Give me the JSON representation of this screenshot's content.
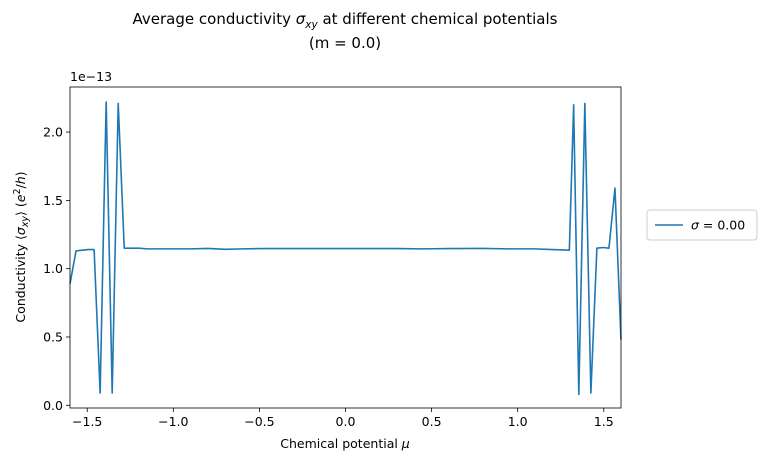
{
  "chart_data": {
    "type": "line",
    "title_line1_prefix": "Average conductivity ",
    "title_line1_symbol": "σ",
    "title_line1_symbol_sub": "xy",
    "title_line1_suffix": " at different chemical potentials",
    "title_line2": "(m = 0.0)",
    "xlabel_text": "Chemical potential ",
    "xlabel_symbol": "μ",
    "ylabel_prefix": "Conductivity ⟨",
    "ylabel_symbol": "σ",
    "ylabel_sub": "xy",
    "ylabel_mid": "⟩ (",
    "ylabel_e": "e",
    "ylabel_exp": "2",
    "ylabel_rest": "/",
    "ylabel_h": "h",
    "ylabel_close": ")",
    "y_offset_label": "1e−13",
    "xlim": [
      -1.6,
      1.6
    ],
    "ylim": [
      -0.02,
      2.33
    ],
    "x_ticks": [
      -1.5,
      -1.0,
      -0.5,
      0.0,
      0.5,
      1.0,
      1.5
    ],
    "x_tick_labels": [
      "−1.5",
      "−1.0",
      "−0.5",
      "0.0",
      "0.5",
      "1.0",
      "1.5"
    ],
    "y_ticks": [
      0.0,
      0.5,
      1.0,
      1.5,
      2.0
    ],
    "y_tick_labels": [
      "0.0",
      "0.5",
      "1.0",
      "1.5",
      "2.0"
    ],
    "grid": false,
    "legend_placement": "outside-right",
    "series": [
      {
        "name_symbol": "σ",
        "name_rest": " = 0.00",
        "color": "#1f77b4",
        "x": [
          -1.6,
          -1.565,
          -1.53,
          -1.495,
          -1.46,
          -1.425,
          -1.39,
          -1.355,
          -1.32,
          -1.285,
          -1.25,
          -1.2,
          -1.15,
          -1.1,
          -0.9,
          -0.8,
          -0.7,
          -0.6,
          -0.5,
          -0.3,
          -0.1,
          0.1,
          0.3,
          0.45,
          0.6,
          0.8,
          0.95,
          1.1,
          1.2,
          1.25,
          1.3,
          1.325,
          1.355,
          1.39,
          1.425,
          1.46,
          1.495,
          1.53,
          1.565,
          1.6
        ],
        "y": [
          0.89,
          1.13,
          1.135,
          1.14,
          1.14,
          0.09,
          2.22,
          0.09,
          2.21,
          1.15,
          1.15,
          1.15,
          1.145,
          1.145,
          1.145,
          1.148,
          1.142,
          1.145,
          1.147,
          1.147,
          1.147,
          1.147,
          1.147,
          1.145,
          1.147,
          1.148,
          1.145,
          1.145,
          1.14,
          1.138,
          1.135,
          2.2,
          0.08,
          2.21,
          0.09,
          1.15,
          1.155,
          1.15,
          1.59,
          0.48
        ]
      }
    ]
  }
}
